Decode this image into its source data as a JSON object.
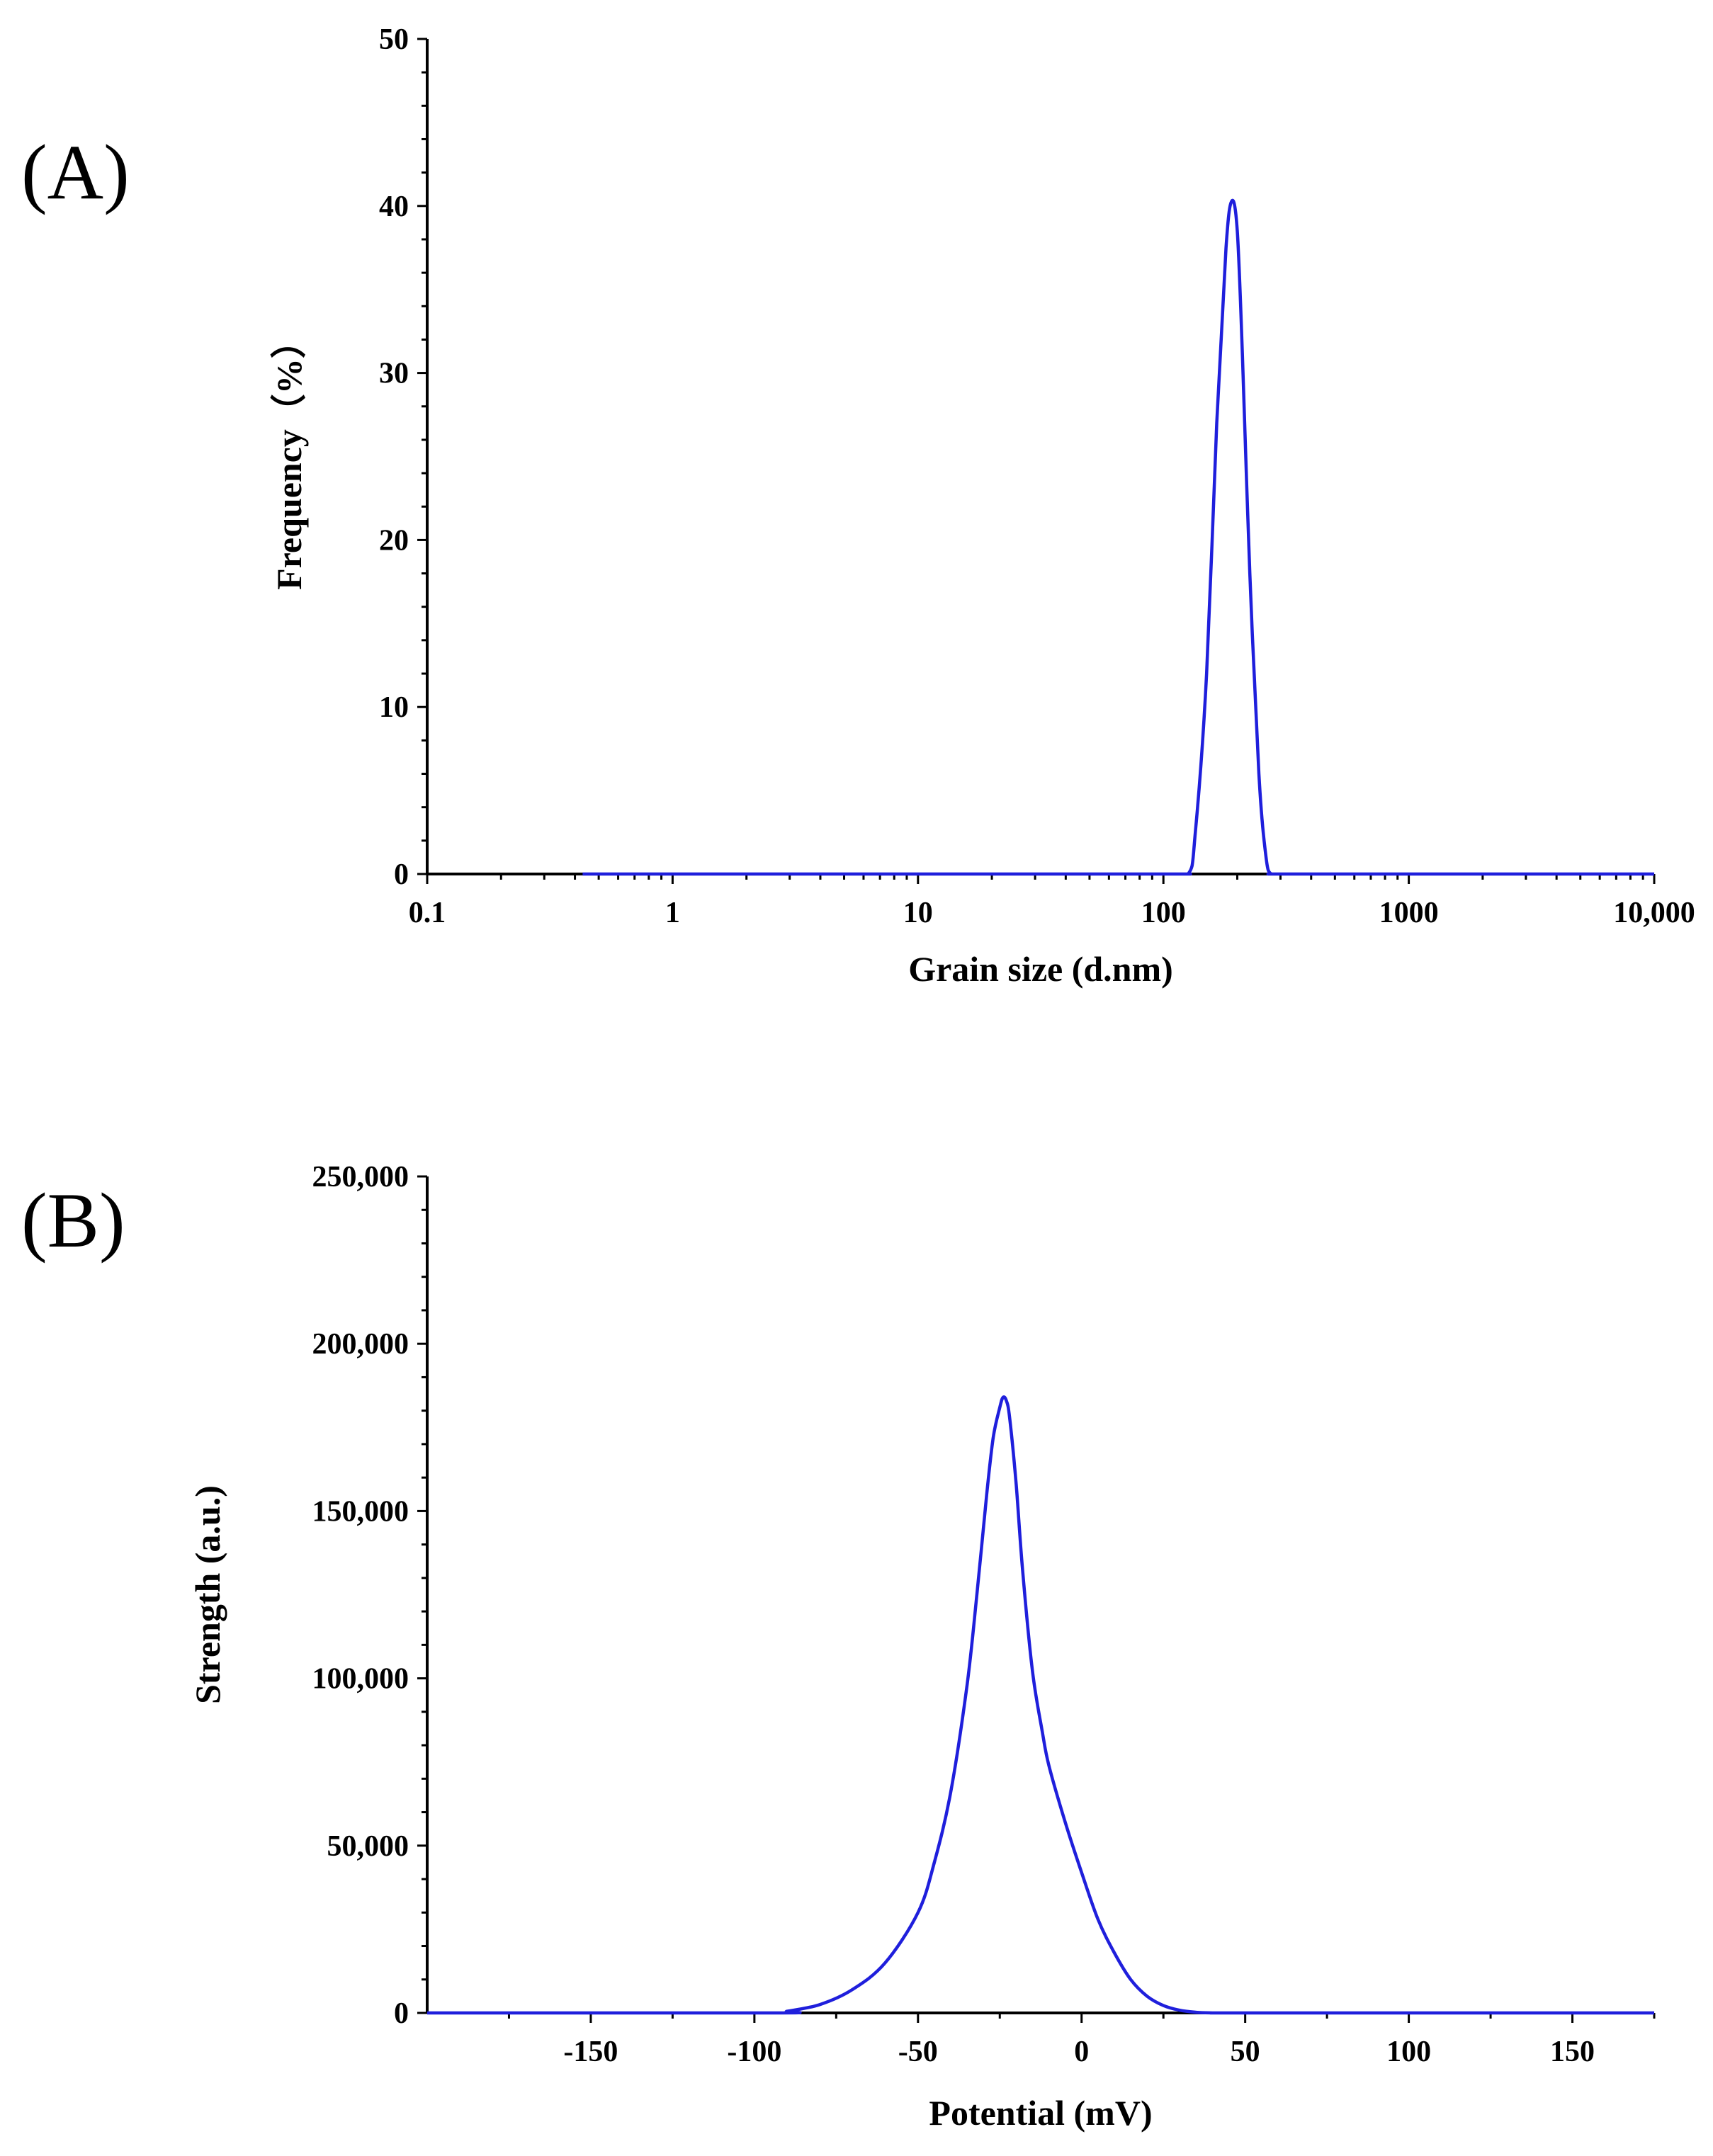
{
  "chart_data": [
    {
      "panel_label": "(A)",
      "type": "line",
      "title": "",
      "xlabel": "Grain size (d.nm)",
      "ylabel": "Frequency（%）",
      "xscale": "log",
      "xlim": [
        0.1,
        10000
      ],
      "ylim": [
        0,
        50
      ],
      "x_ticks": [
        0.1,
        1,
        10,
        100,
        1000,
        10000
      ],
      "x_tick_labels": [
        "0.1",
        "1",
        "10",
        "100",
        "1000",
        "10,000"
      ],
      "y_ticks": [
        0,
        10,
        20,
        30,
        40,
        50
      ],
      "y_tick_labels": [
        "0",
        "10",
        "20",
        "30",
        "40",
        "50"
      ],
      "grid": false,
      "line_color": "#1f1fdc",
      "series": [
        {
          "x": [
            0.43,
            1,
            10,
            100,
            126,
            135,
            150,
            165,
            180,
            190,
            200,
            210,
            225,
            245,
            262,
            275,
            300,
            1000,
            10000
          ],
          "y": [
            0,
            0,
            0,
            0,
            0,
            2.5,
            12,
            27,
            37.5,
            40.3,
            38.5,
            31,
            18,
            6,
            1,
            0,
            0,
            0,
            0
          ]
        }
      ]
    },
    {
      "panel_label": "(B)",
      "type": "line",
      "title": "",
      "xlabel": "Potential (mV)",
      "ylabel": "Strength (a.u.)",
      "xlim": [
        -200,
        175
      ],
      "ylim": [
        0,
        250000
      ],
      "x_ticks": [
        -150,
        -100,
        -50,
        0,
        50,
        100,
        150
      ],
      "x_tick_labels": [
        "-150",
        "-100",
        "-50",
        "0",
        "50",
        "100",
        "150"
      ],
      "y_ticks": [
        0,
        50000,
        100000,
        150000,
        200000,
        250000
      ],
      "y_tick_labels": [
        "0",
        "50,000",
        "100,000",
        "150,000",
        "200,000",
        "250,000"
      ],
      "grid": false,
      "line_color": "#1f1fdc",
      "series": [
        {
          "x": [
            -200,
            -95,
            -90,
            -80,
            -70,
            -60,
            -50,
            -45,
            -40,
            -35,
            -32,
            -29,
            -27,
            -25,
            -24,
            -23,
            -22,
            -20,
            -18,
            -15,
            -12,
            -10,
            -5,
            0,
            5,
            10,
            15,
            20,
            25,
            30,
            35,
            40,
            45,
            50,
            175
          ],
          "y": [
            0,
            0,
            500,
            2500,
            7000,
            15000,
            30000,
            45000,
            66000,
            98000,
            125000,
            155000,
            172000,
            181000,
            184000,
            183000,
            178000,
            158000,
            132000,
            102000,
            84000,
            74000,
            57000,
            42000,
            28000,
            18000,
            10000,
            5000,
            2200,
            800,
            200,
            0,
            0,
            0,
            0
          ]
        }
      ]
    }
  ]
}
